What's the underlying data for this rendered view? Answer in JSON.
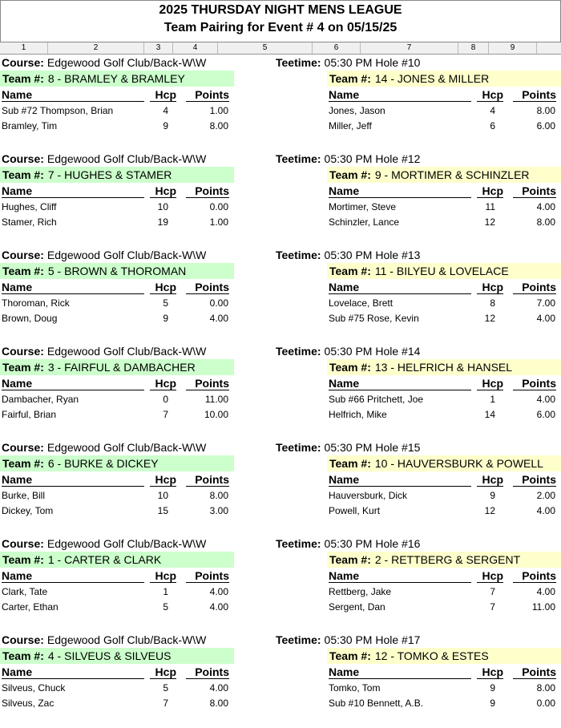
{
  "title": "2025 THURSDAY NIGHT MENS LEAGUE",
  "subtitle": "Team Pairing for Event # 4 on 05/15/25",
  "columns": [
    "1",
    "2",
    "3",
    "4",
    "5",
    "6",
    "7",
    "8",
    "9"
  ],
  "labels": {
    "course": "Course:",
    "teetime": "Teetime:",
    "team": "Team #:",
    "name": "Name",
    "hcp": "Hcp",
    "points": "Points"
  },
  "colors": {
    "left_team_bg": "#ccffcc",
    "right_team_bg": "#ffffcc"
  },
  "matches": [
    {
      "course": "Edgewood Golf Club/Back-W\\W",
      "teetime": "05:30 PM Hole #10",
      "left": {
        "team": "8 - BRAMLEY & BRAMLEY",
        "players": [
          {
            "name": "Sub #72 Thompson, Brian",
            "hcp": "4",
            "points": "1.00"
          },
          {
            "name": "Bramley, Tim",
            "hcp": "9",
            "points": "8.00"
          }
        ]
      },
      "right": {
        "team": "14 - JONES & MILLER",
        "players": [
          {
            "name": "Jones, Jason",
            "hcp": "4",
            "points": "8.00"
          },
          {
            "name": "Miller, Jeff",
            "hcp": "6",
            "points": "6.00"
          }
        ]
      }
    },
    {
      "course": "Edgewood Golf Club/Back-W\\W",
      "teetime": "05:30 PM Hole #12",
      "left": {
        "team": "7 - HUGHES & STAMER",
        "players": [
          {
            "name": "Hughes, Cliff",
            "hcp": "10",
            "points": "0.00"
          },
          {
            "name": "Stamer, Rich",
            "hcp": "19",
            "points": "1.00"
          }
        ]
      },
      "right": {
        "team": "9 - MORTIMER & SCHINZLER",
        "players": [
          {
            "name": "Mortimer, Steve",
            "hcp": "11",
            "points": "4.00"
          },
          {
            "name": "Schinzler, Lance",
            "hcp": "12",
            "points": "8.00"
          }
        ]
      }
    },
    {
      "course": "Edgewood Golf Club/Back-W\\W",
      "teetime": "05:30 PM Hole #13",
      "left": {
        "team": "5 - BROWN & THOROMAN",
        "players": [
          {
            "name": "Thoroman, Rick",
            "hcp": "5",
            "points": "0.00"
          },
          {
            "name": "Brown, Doug",
            "hcp": "9",
            "points": "4.00"
          }
        ]
      },
      "right": {
        "team": "11 - BILYEU & LOVELACE",
        "players": [
          {
            "name": "Lovelace, Brett",
            "hcp": "8",
            "points": "7.00"
          },
          {
            "name": "Sub #75 Rose, Kevin",
            "hcp": "12",
            "points": "4.00"
          }
        ]
      }
    },
    {
      "course": "Edgewood Golf Club/Back-W\\W",
      "teetime": "05:30 PM Hole #14",
      "left": {
        "team": "3 - FAIRFUL & DAMBACHER",
        "players": [
          {
            "name": "Dambacher, Ryan",
            "hcp": "0",
            "points": "11.00"
          },
          {
            "name": "Fairful, Brian",
            "hcp": "7",
            "points": "10.00"
          }
        ]
      },
      "right": {
        "team": "13 - HELFRICH & HANSEL",
        "players": [
          {
            "name": "Sub #66 Pritchett, Joe",
            "hcp": "1",
            "points": "4.00"
          },
          {
            "name": "Helfrich, Mike",
            "hcp": "14",
            "points": "6.00"
          }
        ]
      }
    },
    {
      "course": "Edgewood Golf Club/Back-W\\W",
      "teetime": "05:30 PM Hole #15",
      "left": {
        "team": "6 - BURKE & DICKEY",
        "players": [
          {
            "name": "Burke, Bill",
            "hcp": "10",
            "points": "8.00"
          },
          {
            "name": "Dickey, Tom",
            "hcp": "15",
            "points": "3.00"
          }
        ]
      },
      "right": {
        "team": "10 - HAUVERSBURK & POWELL",
        "players": [
          {
            "name": "Hauversburk, Dick",
            "hcp": "9",
            "points": "2.00"
          },
          {
            "name": "Powell, Kurt",
            "hcp": "12",
            "points": "4.00"
          }
        ]
      }
    },
    {
      "course": "Edgewood Golf Club/Back-W\\W",
      "teetime": "05:30 PM Hole #16",
      "left": {
        "team": "1 - CARTER & CLARK",
        "players": [
          {
            "name": "Clark, Tate",
            "hcp": "1",
            "points": "4.00"
          },
          {
            "name": "Carter, Ethan",
            "hcp": "5",
            "points": "4.00"
          }
        ]
      },
      "right": {
        "team": "2 - RETTBERG & SERGENT",
        "players": [
          {
            "name": "Rettberg, Jake",
            "hcp": "7",
            "points": "4.00"
          },
          {
            "name": "Sergent, Dan",
            "hcp": "7",
            "points": "11.00"
          }
        ]
      }
    },
    {
      "course": "Edgewood Golf Club/Back-W\\W",
      "teetime": "05:30 PM Hole #17",
      "left": {
        "team": "4 - SILVEUS & SILVEUS",
        "players": [
          {
            "name": "Silveus, Chuck",
            "hcp": "5",
            "points": "4.00"
          },
          {
            "name": "Silveus, Zac",
            "hcp": "7",
            "points": "8.00"
          }
        ]
      },
      "right": {
        "team": "12 - TOMKO & ESTES",
        "players": [
          {
            "name": "Tomko, Tom",
            "hcp": "9",
            "points": "8.00"
          },
          {
            "name": "Sub #10 Bennett, A.B.",
            "hcp": "9",
            "points": "0.00"
          }
        ]
      }
    }
  ]
}
